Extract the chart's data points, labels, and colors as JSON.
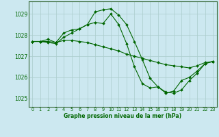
{
  "title": "Graphe pression niveau de la mer (hPa)",
  "background_color": "#cce8f0",
  "grid_color": "#aacccc",
  "line_color": "#006600",
  "marker_color": "#006600",
  "xlim": [
    -0.5,
    23.5
  ],
  "ylim": [
    1024.6,
    1029.6
  ],
  "yticks": [
    1025,
    1026,
    1027,
    1028,
    1029
  ],
  "xticks": [
    0,
    1,
    2,
    3,
    4,
    5,
    6,
    7,
    8,
    9,
    10,
    11,
    12,
    13,
    14,
    15,
    16,
    17,
    18,
    19,
    20,
    21,
    22,
    23
  ],
  "lines": [
    [
      1027.7,
      1027.7,
      1027.7,
      1027.65,
      1027.75,
      1027.75,
      1027.7,
      1027.65,
      1027.55,
      1027.45,
      1027.35,
      1027.25,
      1027.1,
      1027.0,
      1026.9,
      1026.8,
      1026.7,
      1026.6,
      1026.55,
      1026.5,
      1026.45,
      1026.55,
      1026.7,
      1026.75
    ],
    [
      1027.7,
      1027.7,
      1027.65,
      1027.6,
      1027.9,
      1028.1,
      1028.3,
      1028.5,
      1029.1,
      1029.2,
      1029.25,
      1028.95,
      1028.5,
      1027.7,
      1026.85,
      1025.95,
      1025.55,
      1025.3,
      1025.25,
      1025.4,
      1025.85,
      1026.2,
      1026.65,
      1026.75
    ],
    [
      1027.7,
      1027.7,
      1027.8,
      1027.65,
      1028.1,
      1028.25,
      1028.3,
      1028.5,
      1028.6,
      1028.55,
      1029.0,
      1028.5,
      1027.6,
      1026.5,
      1025.7,
      1025.5,
      1025.55,
      1025.25,
      1025.35,
      1025.85,
      1026.0,
      1026.3,
      1026.65,
      1026.75
    ]
  ]
}
